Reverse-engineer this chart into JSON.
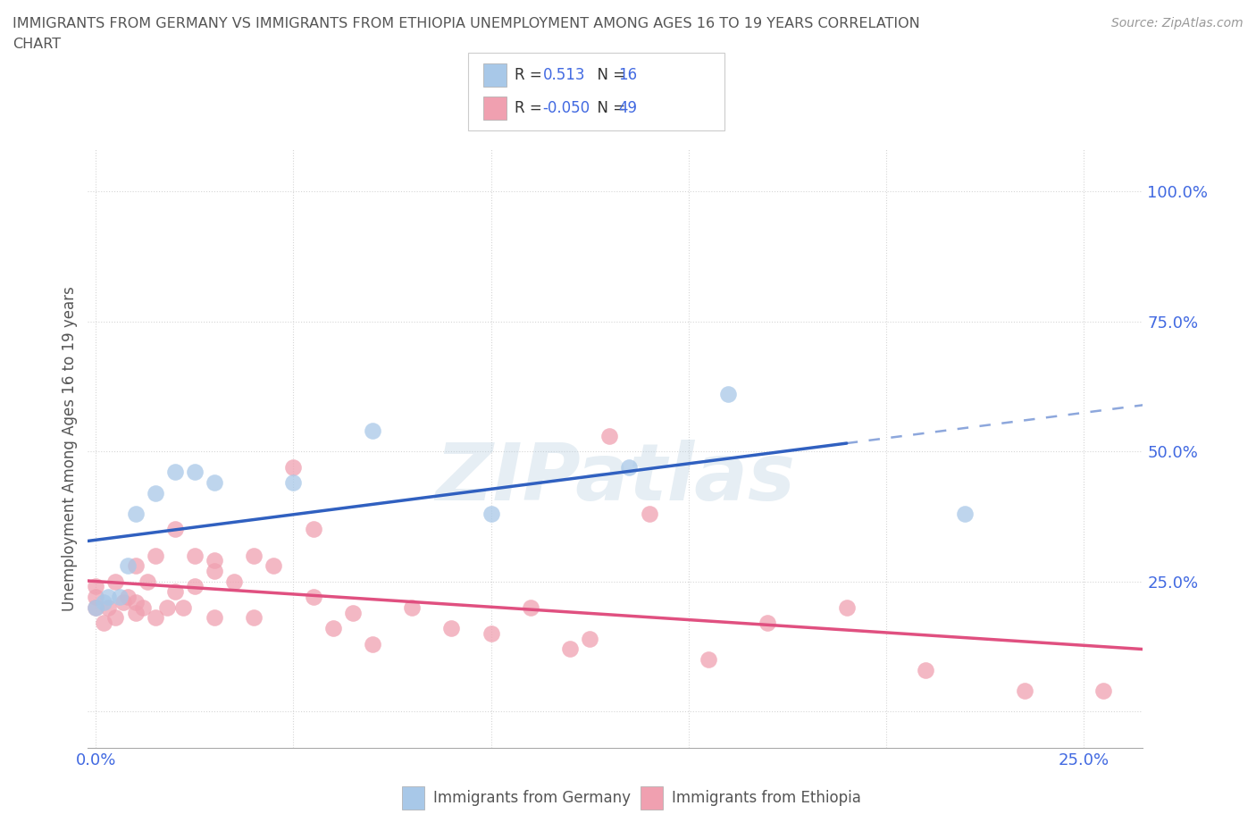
{
  "title_line1": "IMMIGRANTS FROM GERMANY VS IMMIGRANTS FROM ETHIOPIA UNEMPLOYMENT AMONG AGES 16 TO 19 YEARS CORRELATION",
  "title_line2": "CHART",
  "source": "Source: ZipAtlas.com",
  "ylabel": "Unemployment Among Ages 16 to 19 years",
  "x_ticks": [
    0.0,
    0.05,
    0.1,
    0.15,
    0.2,
    0.25
  ],
  "x_tick_labels": [
    "0.0%",
    "",
    "",
    "",
    "",
    "25.0%"
  ],
  "y_ticks": [
    0.0,
    0.25,
    0.5,
    0.75,
    1.0
  ],
  "y_tick_labels": [
    "",
    "25.0%",
    "50.0%",
    "75.0%",
    "100.0%"
  ],
  "xlim": [
    -0.002,
    0.265
  ],
  "ylim": [
    -0.07,
    1.08
  ],
  "germany_R": 0.513,
  "germany_N": 16,
  "ethiopia_R": -0.05,
  "ethiopia_N": 49,
  "germany_color": "#a8c8e8",
  "ethiopia_color": "#f0a0b0",
  "germany_line_color": "#3060c0",
  "ethiopia_line_color": "#e05080",
  "germany_scatter_x": [
    0.0,
    0.002,
    0.003,
    0.006,
    0.008,
    0.01,
    0.015,
    0.02,
    0.025,
    0.03,
    0.05,
    0.07,
    0.1,
    0.135,
    0.16,
    0.22
  ],
  "germany_scatter_y": [
    0.2,
    0.21,
    0.22,
    0.22,
    0.28,
    0.38,
    0.42,
    0.46,
    0.46,
    0.44,
    0.44,
    0.54,
    0.38,
    0.47,
    0.61,
    0.38
  ],
  "ethiopia_scatter_x": [
    0.0,
    0.0,
    0.0,
    0.002,
    0.003,
    0.005,
    0.005,
    0.007,
    0.008,
    0.01,
    0.01,
    0.01,
    0.012,
    0.013,
    0.015,
    0.015,
    0.018,
    0.02,
    0.02,
    0.022,
    0.025,
    0.025,
    0.03,
    0.03,
    0.03,
    0.035,
    0.04,
    0.04,
    0.045,
    0.05,
    0.055,
    0.055,
    0.06,
    0.065,
    0.07,
    0.08,
    0.09,
    0.1,
    0.11,
    0.12,
    0.125,
    0.13,
    0.14,
    0.155,
    0.17,
    0.19,
    0.21,
    0.235,
    0.255
  ],
  "ethiopia_scatter_y": [
    0.2,
    0.22,
    0.24,
    0.17,
    0.2,
    0.18,
    0.25,
    0.21,
    0.22,
    0.19,
    0.21,
    0.28,
    0.2,
    0.25,
    0.18,
    0.3,
    0.2,
    0.23,
    0.35,
    0.2,
    0.24,
    0.3,
    0.27,
    0.18,
    0.29,
    0.25,
    0.18,
    0.3,
    0.28,
    0.47,
    0.22,
    0.35,
    0.16,
    0.19,
    0.13,
    0.2,
    0.16,
    0.15,
    0.2,
    0.12,
    0.14,
    0.53,
    0.38,
    0.1,
    0.17,
    0.2,
    0.08,
    0.04,
    0.04
  ],
  "watermark": "ZIPatlas",
  "background_color": "#ffffff",
  "grid_color": "#cccccc",
  "title_color": "#555555",
  "axis_label_color": "#4169E1"
}
